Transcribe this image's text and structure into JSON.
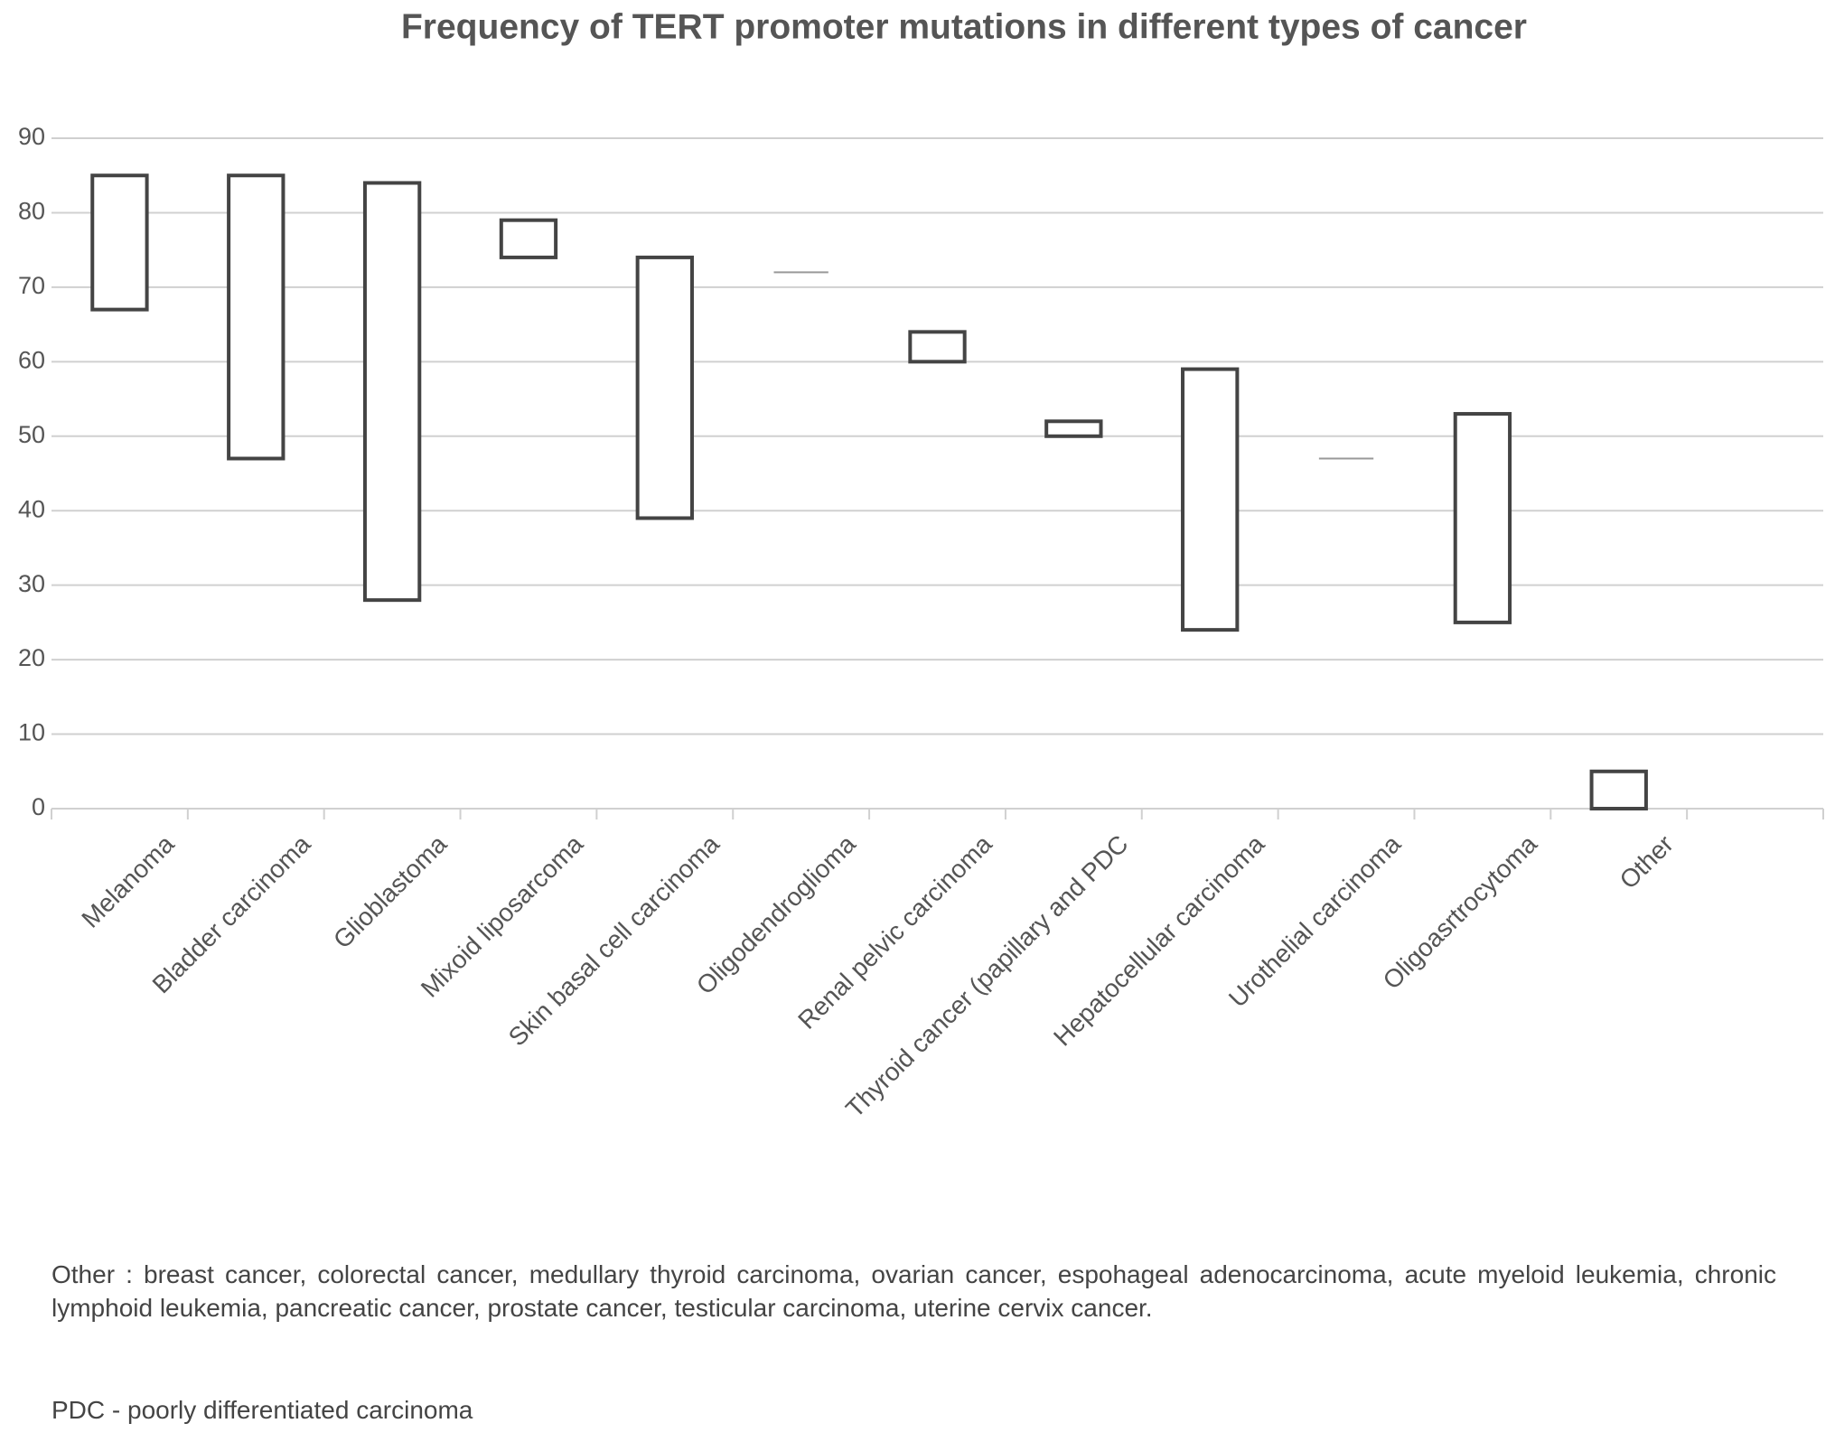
{
  "chart_data": {
    "type": "floating_bar",
    "title": "Frequency of TERT promoter mutations in different types of cancer",
    "categories": [
      "Melanoma",
      "Bladder carcinoma",
      "Glioblastoma",
      "Mixoid liposarcoma",
      "Skin basal cell carcinoma",
      "Oligodendroglioma",
      "Renal pelvic carcinoma",
      "Thyroid cancer (papillary and PDC",
      "Hepatocellular carcinoma",
      "Urothelial carcinoma",
      "Oligoasrtrocytoma",
      "Other",
      null
    ],
    "low": [
      67,
      47,
      28,
      74,
      39,
      72,
      60,
      50,
      24,
      47,
      25,
      0,
      null
    ],
    "high": [
      85,
      85,
      84,
      79,
      74,
      72,
      64,
      52,
      59,
      47,
      53,
      5,
      null
    ],
    "color": "#444444",
    "ylim": [
      0,
      90
    ],
    "yticks": [
      0,
      10,
      20,
      30,
      40,
      50,
      60,
      70,
      80,
      90
    ],
    "grid": true,
    "annotations": [
      "Other : breast cancer, colorectal cancer, medullary thyroid carcinoma, ovarian cancer, espohageal adenocarcinoma, acute myeloid leukemia, chronic lymphoid leukemia, pancreatic cancer, prostate cancer, testicular carcinoma, uterine cervix cancer.",
      "PDC - poorly differentiated carcinoma"
    ]
  }
}
